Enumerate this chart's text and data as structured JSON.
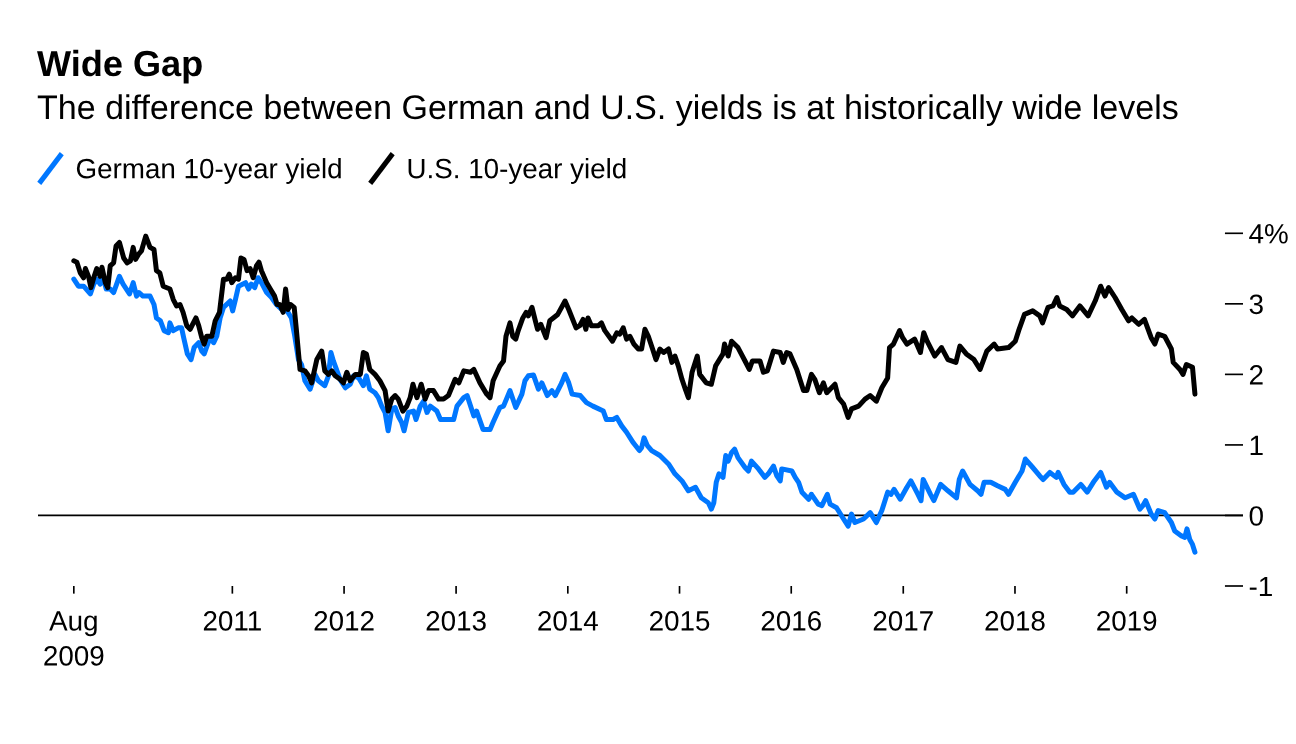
{
  "chart_data": {
    "type": "line",
    "title": "Wide Gap",
    "subtitle": "The difference between German and U.S. yields is at historically wide levels",
    "xlim": [
      "2009-04-06",
      "2020-01-16"
    ],
    "xticks": [
      {
        "value": "2009-08",
        "label": "Aug\n2009"
      },
      "2011",
      "2012",
      "2013",
      "2014",
      "2015",
      "2016",
      "2017",
      "2018",
      "2019"
    ],
    "ylim": [
      -1,
      4
    ],
    "yticks": [
      {
        "value": 4,
        "label": "4%"
      },
      3,
      2,
      1,
      0,
      -1
    ],
    "ref_lines": [
      {
        "axis": "y",
        "value": 0,
        "color": "#000000"
      }
    ],
    "legend": "top left",
    "series": [
      {
        "name": "German 10-year yield",
        "color": "#0077ff",
        "x": [
          "2009-08-01",
          "2009-08-16",
          "2009-09-02",
          "2009-09-24",
          "2009-10-05",
          "2009-10-15",
          "2009-10-26",
          "2009-11-05",
          "2009-11-15",
          "2009-11-28",
          "2009-12-09",
          "2009-12-28",
          "2010-01-09",
          "2010-01-30",
          "2010-02-11",
          "2010-02-22",
          "2010-03-02",
          "2010-03-15",
          "2010-04-07",
          "2010-04-20",
          "2010-04-28",
          "2010-05-11",
          "2010-05-23",
          "2010-06-06",
          "2010-06-11",
          "2010-06-22",
          "2010-07-08",
          "2010-07-19",
          "2010-07-26",
          "2010-08-07",
          "2010-08-19",
          "2010-08-29",
          "2010-09-13",
          "2010-09-23",
          "2010-10-01",
          "2010-10-20",
          "2010-11-01",
          "2010-11-11",
          "2010-11-22",
          "2010-12-03",
          "2010-12-25",
          "2011-01-02",
          "2011-01-11",
          "2011-01-21",
          "2011-02-13",
          "2011-02-23",
          "2011-03-04",
          "2011-03-15",
          "2011-03-26",
          "2011-04-06",
          "2011-04-23",
          "2011-05-09",
          "2011-05-25",
          "2011-06-11",
          "2011-06-22",
          "2011-07-13",
          "2011-07-24",
          "2011-08-05",
          "2011-08-15",
          "2011-08-26",
          "2011-09-12",
          "2011-09-28",
          "2011-10-09",
          "2011-10-30",
          "2011-11-11",
          "2011-11-19",
          "2011-11-27",
          "2011-12-19",
          "2012-01-05",
          "2012-01-21",
          "2012-02-01",
          "2012-02-18",
          "2012-03-04",
          "2012-03-14",
          "2012-03-25",
          "2012-04-11",
          "2012-04-22",
          "2012-05-03",
          "2012-05-14",
          "2012-05-24",
          "2012-06-05",
          "2012-06-16",
          "2012-06-26",
          "2012-07-07",
          "2012-07-15",
          "2012-07-29",
          "2012-08-15",
          "2012-08-23",
          "2012-09-06",
          "2012-09-17",
          "2012-09-28",
          "2012-10-09",
          "2012-10-30",
          "2012-11-11",
          "2012-12-07",
          "2012-12-24",
          "2013-01-04",
          "2013-01-26",
          "2013-02-06",
          "2013-02-28",
          "2013-03-09",
          "2013-03-30",
          "2013-04-22",
          "2013-05-02",
          "2013-05-24",
          "2013-06-05",
          "2013-06-26",
          "2013-07-15",
          "2013-08-04",
          "2013-08-14",
          "2013-08-25",
          "2013-09-11",
          "2013-09-27",
          "2013-10-08",
          "2013-10-26",
          "2013-11-10",
          "2013-11-21",
          "2013-12-12",
          "2013-12-23",
          "2014-01-04",
          "2014-01-15",
          "2014-02-11",
          "2014-03-03",
          "2014-03-24",
          "2014-04-27",
          "2014-05-07",
          "2014-05-29",
          "2014-06-10",
          "2014-06-26",
          "2014-07-12",
          "2014-08-03",
          "2014-08-23",
          "2014-08-30",
          "2014-09-07",
          "2014-09-18",
          "2014-10-02",
          "2014-10-29",
          "2014-11-26",
          "2014-12-17",
          "2015-01-09",
          "2015-01-30",
          "2015-02-22",
          "2015-03-13",
          "2015-04-05",
          "2015-04-15",
          "2015-04-23",
          "2015-05-01",
          "2015-05-10",
          "2015-05-23",
          "2015-06-01",
          "2015-06-09",
          "2015-06-20",
          "2015-06-30",
          "2015-07-11",
          "2015-08-03",
          "2015-08-14",
          "2015-08-24",
          "2015-09-16",
          "2015-10-07",
          "2015-10-18",
          "2015-11-04",
          "2015-11-15",
          "2015-11-26",
          "2015-12-01",
          "2016-01-03",
          "2016-01-14",
          "2016-01-25",
          "2016-02-05",
          "2016-02-27",
          "2016-03-07",
          "2016-03-29",
          "2016-04-10",
          "2016-04-28",
          "2016-05-07",
          "2016-05-28",
          "2016-06-20",
          "2016-07-05",
          "2016-07-16",
          "2016-07-27",
          "2016-08-24",
          "2016-09-15",
          "2016-10-05",
          "2016-10-23",
          "2016-11-11",
          "2016-11-22",
          "2016-12-02",
          "2016-12-22",
          "2017-01-13",
          "2017-01-26",
          "2017-02-18",
          "2017-02-28",
          "2017-03-07",
          "2017-03-31",
          "2017-04-11",
          "2017-05-03",
          "2017-05-27",
          "2017-06-24",
          "2017-07-03",
          "2017-07-14",
          "2017-08-07",
          "2017-09-01",
          "2017-09-12",
          "2017-09-22",
          "2017-10-14",
          "2017-11-05",
          "2017-11-30",
          "2017-12-11",
          "2018-01-02",
          "2018-01-24",
          "2018-02-04",
          "2018-02-28",
          "2018-03-23",
          "2018-04-03",
          "2018-04-25",
          "2018-05-16",
          "2018-05-22",
          "2018-06-10",
          "2018-06-29",
          "2018-07-10",
          "2018-08-04",
          "2018-08-25",
          "2018-09-17",
          "2018-10-08",
          "2018-10-27",
          "2018-11-06",
          "2018-11-30",
          "2018-12-27",
          "2019-01-23",
          "2019-02-13",
          "2019-02-23",
          "2019-03-04",
          "2019-03-22",
          "2019-04-03",
          "2019-04-14",
          "2019-05-05",
          "2019-05-27",
          "2019-06-07",
          "2019-06-29",
          "2019-07-10",
          "2019-07-17",
          "2019-07-26",
          "2019-08-04",
          "2019-08-12"
        ],
        "values": [
          3.35,
          3.25,
          3.25,
          3.14,
          3.28,
          3.35,
          3.28,
          3.37,
          3.21,
          3.21,
          3.16,
          3.39,
          3.28,
          3.14,
          3.3,
          3.11,
          3.16,
          3.11,
          3.11,
          2.99,
          2.8,
          2.76,
          2.62,
          2.59,
          2.73,
          2.62,
          2.66,
          2.66,
          2.52,
          2.29,
          2.21,
          2.38,
          2.45,
          2.33,
          2.29,
          2.52,
          2.45,
          2.54,
          2.8,
          2.95,
          3.04,
          2.9,
          3.06,
          3.25,
          3.3,
          3.21,
          3.28,
          3.23,
          3.37,
          3.3,
          3.16,
          3.09,
          2.99,
          2.92,
          2.95,
          2.8,
          2.54,
          2.21,
          2.14,
          1.91,
          1.79,
          2.0,
          1.91,
          1.84,
          1.98,
          2.31,
          2.19,
          1.93,
          1.81,
          1.86,
          1.98,
          1.95,
          1.84,
          1.98,
          1.79,
          1.74,
          1.67,
          1.55,
          1.46,
          1.2,
          1.51,
          1.53,
          1.41,
          1.32,
          1.2,
          1.46,
          1.48,
          1.36,
          1.55,
          1.62,
          1.46,
          1.55,
          1.48,
          1.36,
          1.36,
          1.36,
          1.55,
          1.67,
          1.7,
          1.41,
          1.48,
          1.22,
          1.22,
          1.32,
          1.53,
          1.55,
          1.77,
          1.53,
          1.72,
          1.91,
          1.98,
          1.99,
          1.79,
          1.88,
          1.7,
          1.77,
          1.7,
          1.88,
          2.0,
          1.88,
          1.72,
          1.7,
          1.6,
          1.55,
          1.48,
          1.36,
          1.36,
          1.39,
          1.27,
          1.18,
          1.03,
          0.92,
          0.96,
          1.1,
          0.99,
          0.92,
          0.85,
          0.73,
          0.59,
          0.49,
          0.35,
          0.4,
          0.25,
          0.18,
          0.09,
          0.18,
          0.47,
          0.59,
          0.54,
          0.85,
          0.77,
          0.89,
          0.94,
          0.82,
          0.68,
          0.63,
          0.77,
          0.66,
          0.54,
          0.59,
          0.7,
          0.56,
          0.49,
          0.66,
          0.63,
          0.54,
          0.47,
          0.33,
          0.23,
          0.3,
          0.16,
          0.14,
          0.3,
          0.16,
          0.11,
          -0.05,
          -0.15,
          0.02,
          -0.1,
          -0.05,
          0.04,
          -0.1,
          0.07,
          0.33,
          0.3,
          0.37,
          0.23,
          0.4,
          0.49,
          0.3,
          0.21,
          0.51,
          0.3,
          0.21,
          0.44,
          0.35,
          0.25,
          0.51,
          0.63,
          0.44,
          0.35,
          0.3,
          0.47,
          0.47,
          0.42,
          0.37,
          0.3,
          0.47,
          0.63,
          0.8,
          0.68,
          0.56,
          0.51,
          0.61,
          0.54,
          0.61,
          0.44,
          0.33,
          0.33,
          0.44,
          0.33,
          0.49,
          0.61,
          0.4,
          0.47,
          0.33,
          0.25,
          0.3,
          0.09,
          0.14,
          0.21,
          0.02,
          -0.05,
          0.07,
          0.04,
          -0.1,
          -0.22,
          -0.29,
          -0.31,
          -0.19,
          -0.34,
          -0.41,
          -0.52
        ]
      },
      {
        "name": "U.S. 10-year yield",
        "color": "#000000",
        "x": [
          "2009-08-01",
          "2009-08-11",
          "2009-08-22",
          "2009-09-02",
          "2009-09-08",
          "2009-09-18",
          "2009-09-26",
          "2009-10-05",
          "2009-10-15",
          "2009-10-26",
          "2009-11-01",
          "2009-11-12",
          "2009-11-20",
          "2009-11-28",
          "2009-12-09",
          "2009-12-17",
          "2009-12-28",
          "2010-01-11",
          "2010-01-22",
          "2010-02-02",
          "2010-02-11",
          "2010-02-19",
          "2010-02-28",
          "2010-03-10",
          "2010-03-24",
          "2010-04-07",
          "2010-04-20",
          "2010-04-28",
          "2010-05-09",
          "2010-05-20",
          "2010-06-11",
          "2010-06-22",
          "2010-07-03",
          "2010-07-14",
          "2010-07-24",
          "2010-08-05",
          "2010-08-16",
          "2010-09-04",
          "2010-09-13",
          "2010-09-23",
          "2010-10-01",
          "2010-10-09",
          "2010-10-26",
          "2010-11-06",
          "2010-11-20",
          "2010-12-03",
          "2010-12-14",
          "2010-12-22",
          "2010-12-30",
          "2011-01-11",
          "2011-01-21",
          "2011-01-29",
          "2011-02-08",
          "2011-02-18",
          "2011-02-28",
          "2011-03-10",
          "2011-03-21",
          "2011-03-29",
          "2011-04-06",
          "2011-04-23",
          "2011-05-05",
          "2011-05-19",
          "2011-05-27",
          "2011-06-05",
          "2011-06-16",
          "2011-06-24",
          "2011-07-02",
          "2011-07-10",
          "2011-07-22",
          "2011-07-29",
          "2011-08-10",
          "2011-08-26",
          "2011-09-07",
          "2011-09-17",
          "2011-10-04",
          "2011-10-20",
          "2011-10-30",
          "2011-11-11",
          "2011-11-22",
          "2011-12-03",
          "2011-12-19",
          "2011-12-30",
          "2012-01-10",
          "2012-01-21",
          "2012-02-07",
          "2012-02-23",
          "2012-03-04",
          "2012-03-14",
          "2012-03-25",
          "2012-04-11",
          "2012-04-27",
          "2012-05-14",
          "2012-05-24",
          "2012-06-05",
          "2012-06-16",
          "2012-06-26",
          "2012-07-11",
          "2012-07-24",
          "2012-08-04",
          "2012-08-13",
          "2012-08-26",
          "2012-09-09",
          "2012-09-22",
          "2012-10-03",
          "2012-10-19",
          "2012-11-05",
          "2012-11-21",
          "2012-12-07",
          "2012-12-29",
          "2013-01-10",
          "2013-01-26",
          "2013-02-17",
          "2013-02-28",
          "2013-03-20",
          "2013-04-11",
          "2013-04-22",
          "2013-05-02",
          "2013-05-24",
          "2013-06-05",
          "2013-06-13",
          "2013-06-26",
          "2013-07-05",
          "2013-07-15",
          "2013-07-23",
          "2013-08-07",
          "2013-08-18",
          "2013-08-25",
          "2013-09-06",
          "2013-09-17",
          "2013-09-24",
          "2013-10-05",
          "2013-10-22",
          "2013-11-03",
          "2013-11-29",
          "2013-12-23",
          "2014-01-04",
          "2014-01-28",
          "2014-02-09",
          "2014-02-20",
          "2014-03-01",
          "2014-03-08",
          "2014-03-19",
          "2014-04-11",
          "2014-04-21",
          "2014-05-02",
          "2014-05-27",
          "2014-06-10",
          "2014-06-20",
          "2014-07-01",
          "2014-07-12",
          "2014-07-23",
          "2014-08-05",
          "2014-08-19",
          "2014-08-30",
          "2014-09-10",
          "2014-09-21",
          "2014-10-05",
          "2014-10-16",
          "2014-10-29",
          "2014-11-10",
          "2014-11-26",
          "2014-12-07",
          "2014-12-17",
          "2014-12-28",
          "2015-01-09",
          "2015-01-20",
          "2015-01-30",
          "2015-02-11",
          "2015-02-28",
          "2015-03-08",
          "2015-03-29",
          "2015-04-15",
          "2015-04-29",
          "2015-05-23",
          "2015-05-28",
          "2015-06-09",
          "2015-06-20",
          "2015-07-11",
          "2015-08-03",
          "2015-08-17",
          "2015-08-27",
          "2015-09-21",
          "2015-10-02",
          "2015-10-15",
          "2015-11-04",
          "2015-11-26",
          "2015-12-06",
          "2015-12-17",
          "2015-12-28",
          "2016-01-19",
          "2016-02-10",
          "2016-02-21",
          "2016-03-07",
          "2016-03-18",
          "2016-04-02",
          "2016-04-15",
          "2016-04-26",
          "2016-05-07",
          "2016-05-23",
          "2016-06-03",
          "2016-06-20",
          "2016-07-05",
          "2016-07-16",
          "2016-08-08",
          "2016-08-29",
          "2016-09-15",
          "2016-10-05",
          "2016-10-23",
          "2016-11-11",
          "2016-11-17",
          "2016-11-30",
          "2016-12-20",
          "2016-12-30",
          "2017-01-13",
          "2017-02-07",
          "2017-02-26",
          "2017-03-09",
          "2017-03-20",
          "2017-04-14",
          "2017-05-06",
          "2017-05-27",
          "2017-06-22",
          "2017-07-05",
          "2017-07-26",
          "2017-08-20",
          "2017-09-09",
          "2017-10-01",
          "2017-10-25",
          "2017-11-05",
          "2017-12-11",
          "2018-01-02",
          "2018-01-13",
          "2018-02-01",
          "2018-02-28",
          "2018-03-23",
          "2018-04-01",
          "2018-04-19",
          "2018-05-05",
          "2018-05-18",
          "2018-05-27",
          "2018-06-19",
          "2018-07-08",
          "2018-08-01",
          "2018-08-28",
          "2018-09-20",
          "2018-10-08",
          "2018-10-22",
          "2018-11-03",
          "2018-11-24",
          "2018-12-16",
          "2019-01-07",
          "2019-01-18",
          "2019-02-09",
          "2019-02-28",
          "2019-03-22",
          "2019-04-03",
          "2019-04-14",
          "2019-05-05",
          "2019-05-27",
          "2019-06-02",
          "2019-06-24",
          "2019-07-04",
          "2019-07-15",
          "2019-08-04",
          "2019-08-12"
        ],
        "values": [
          3.61,
          3.59,
          3.44,
          3.37,
          3.5,
          3.39,
          3.23,
          3.37,
          3.5,
          3.39,
          3.52,
          3.3,
          3.23,
          3.54,
          3.58,
          3.82,
          3.87,
          3.65,
          3.58,
          3.61,
          3.8,
          3.63,
          3.7,
          3.75,
          3.96,
          3.8,
          3.77,
          3.47,
          3.44,
          3.25,
          3.21,
          3.06,
          2.97,
          2.99,
          2.88,
          2.69,
          2.64,
          2.8,
          2.69,
          2.52,
          2.43,
          2.54,
          2.54,
          2.76,
          2.88,
          3.35,
          3.35,
          3.42,
          3.3,
          3.37,
          3.35,
          3.65,
          3.63,
          3.47,
          3.5,
          3.37,
          3.54,
          3.59,
          3.47,
          3.3,
          3.21,
          3.11,
          2.99,
          2.99,
          2.88,
          3.21,
          2.92,
          2.99,
          2.95,
          2.64,
          2.07,
          2.05,
          1.98,
          1.88,
          2.21,
          2.33,
          2.05,
          2.0,
          2.05,
          1.98,
          1.93,
          1.88,
          2.03,
          1.91,
          2.0,
          2.0,
          2.31,
          2.29,
          2.07,
          2.0,
          1.91,
          1.77,
          1.48,
          1.65,
          1.7,
          1.65,
          1.48,
          1.55,
          1.67,
          1.86,
          1.67,
          1.86,
          1.65,
          1.77,
          1.77,
          1.65,
          1.65,
          1.7,
          1.93,
          1.88,
          2.05,
          2.03,
          2.07,
          1.88,
          1.72,
          1.67,
          1.91,
          2.12,
          2.19,
          2.54,
          2.73,
          2.54,
          2.5,
          2.62,
          2.8,
          2.88,
          2.83,
          2.95,
          2.76,
          2.64,
          2.71,
          2.52,
          2.76,
          2.85,
          3.04,
          2.92,
          2.66,
          2.69,
          2.78,
          2.64,
          2.8,
          2.69,
          2.69,
          2.73,
          2.62,
          2.47,
          2.59,
          2.57,
          2.66,
          2.5,
          2.54,
          2.43,
          2.36,
          2.36,
          2.64,
          2.54,
          2.36,
          2.21,
          2.36,
          2.31,
          2.36,
          2.17,
          2.26,
          2.12,
          1.93,
          1.79,
          1.67,
          2.03,
          2.26,
          2.0,
          1.88,
          1.86,
          2.12,
          2.29,
          2.43,
          2.26,
          2.47,
          2.38,
          2.19,
          2.07,
          2.19,
          2.19,
          2.03,
          2.05,
          2.33,
          2.31,
          2.17,
          2.31,
          2.29,
          2.07,
          1.77,
          1.77,
          2.0,
          1.93,
          1.74,
          1.88,
          1.74,
          1.79,
          1.86,
          1.67,
          1.58,
          1.39,
          1.51,
          1.55,
          1.65,
          1.7,
          1.62,
          1.81,
          1.95,
          2.38,
          2.43,
          2.62,
          2.52,
          2.43,
          2.5,
          2.31,
          2.59,
          2.47,
          2.26,
          2.38,
          2.21,
          2.17,
          2.4,
          2.29,
          2.21,
          2.07,
          2.33,
          2.43,
          2.36,
          2.38,
          2.47,
          2.62,
          2.85,
          2.9,
          2.83,
          2.73,
          2.95,
          2.97,
          3.09,
          2.97,
          2.92,
          2.83,
          2.97,
          2.83,
          3.04,
          3.25,
          3.11,
          3.23,
          3.09,
          2.92,
          2.76,
          2.8,
          2.71,
          2.78,
          2.52,
          2.43,
          2.57,
          2.54,
          2.36,
          2.17,
          2.07,
          2.0,
          2.14,
          2.1,
          1.72
        ]
      }
    ]
  }
}
